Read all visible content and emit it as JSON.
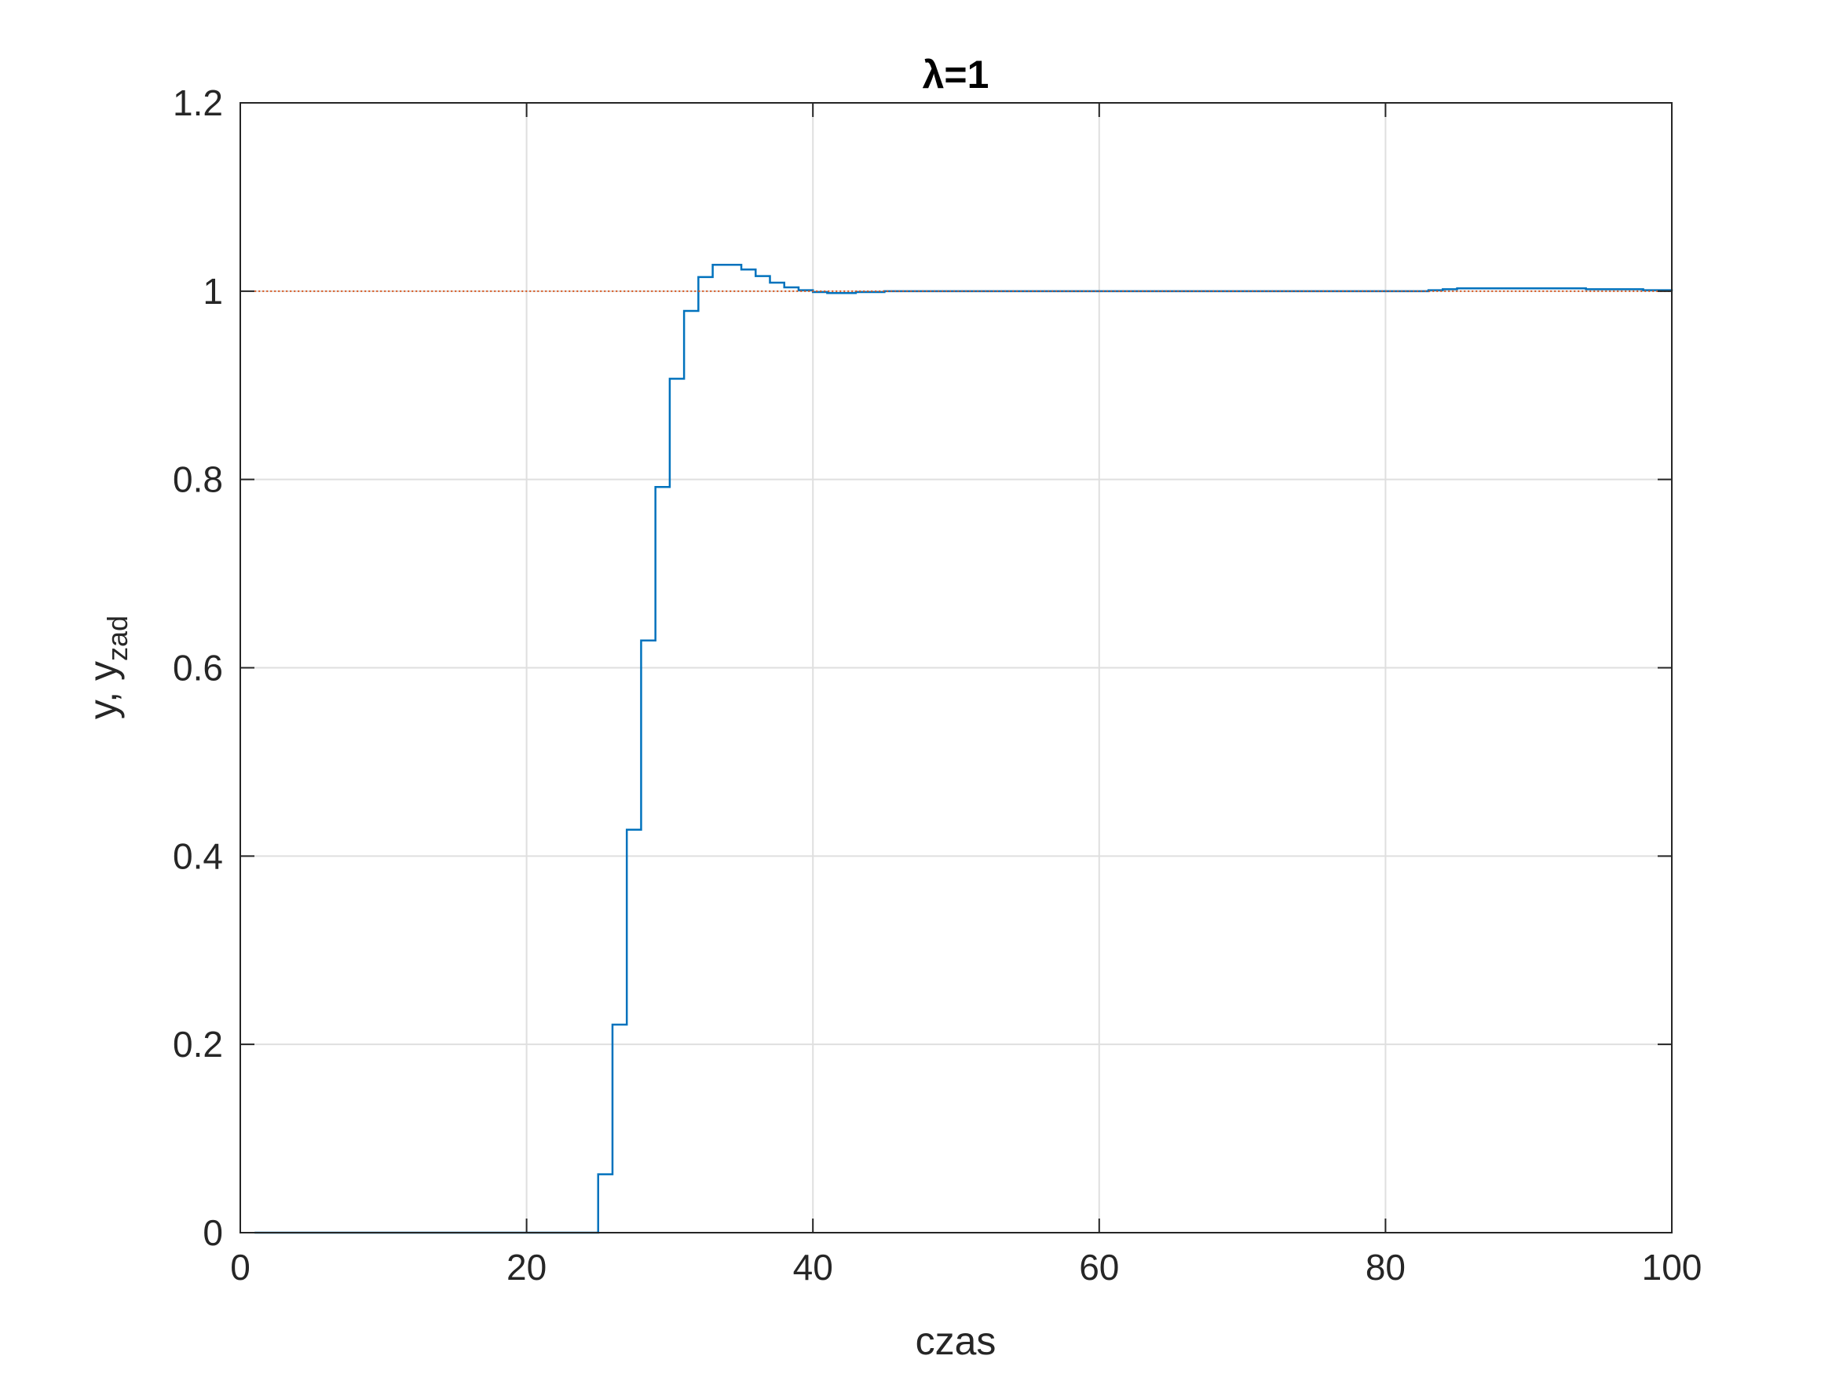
{
  "chart_data": {
    "type": "line",
    "title": "λ=1",
    "xlabel": "czas",
    "ylabel": {
      "main": "y, y",
      "subscript": "zad"
    },
    "xlim": [
      0,
      100
    ],
    "ylim": [
      0,
      1.2
    ],
    "xticks": [
      0,
      20,
      40,
      60,
      80,
      100
    ],
    "xtick_labels": [
      "0",
      "20",
      "40",
      "60",
      "80",
      "100"
    ],
    "yticks": [
      0,
      0.2,
      0.4,
      0.6,
      0.8,
      1,
      1.2
    ],
    "ytick_labels": [
      "0",
      "0.2",
      "0.4",
      "0.6",
      "0.8",
      "1",
      "1.2"
    ],
    "grid": true,
    "series": [
      {
        "color": "#0072BD",
        "style": "stairs",
        "x": [
          1,
          2,
          3,
          4,
          5,
          6,
          7,
          8,
          9,
          10,
          11,
          12,
          13,
          14,
          15,
          16,
          17,
          18,
          19,
          20,
          21,
          22,
          23,
          24,
          25,
          26,
          27,
          28,
          29,
          30,
          31,
          32,
          33,
          34,
          35,
          36,
          37,
          38,
          39,
          40,
          41,
          42,
          43,
          44,
          45,
          46,
          47,
          48,
          49,
          50,
          51,
          52,
          53,
          54,
          55,
          56,
          57,
          58,
          59,
          60,
          61,
          62,
          63,
          64,
          65,
          66,
          67,
          68,
          69,
          70,
          71,
          72,
          73,
          74,
          75,
          76,
          77,
          78,
          79,
          80,
          81,
          82,
          83,
          84,
          85,
          86,
          87,
          88,
          89,
          90,
          91,
          92,
          93,
          94,
          95,
          96,
          97,
          98,
          99,
          100
        ],
        "y": [
          0,
          0,
          0,
          0,
          0,
          0,
          0,
          0,
          0,
          0,
          0,
          0,
          0,
          0,
          0,
          0,
          0,
          0,
          0,
          0,
          0,
          0,
          0,
          0,
          0.062,
          0.221,
          0.428,
          0.629,
          0.792,
          0.907,
          0.979,
          1.015,
          1.028,
          1.028,
          1.023,
          1.016,
          1.009,
          1.004,
          1.001,
          0.999,
          0.998,
          0.998,
          0.999,
          0.999,
          1,
          1,
          1,
          1,
          1,
          1,
          1,
          1,
          1,
          1,
          1,
          1,
          1,
          1,
          1,
          1,
          1,
          1,
          1,
          1,
          1,
          1,
          1,
          1,
          1,
          1,
          1,
          1,
          1,
          1,
          1,
          1,
          1,
          1,
          1,
          1,
          1,
          1,
          1.001,
          1.002,
          1.003,
          1.003,
          1.003,
          1.003,
          1.003,
          1.003,
          1.003,
          1.003,
          1.003,
          1.002,
          1.002,
          1.002,
          1.002,
          1.001,
          1.001,
          1
        ]
      },
      {
        "color": "#D95319",
        "style": "dotted",
        "x": [
          1,
          100
        ],
        "y": [
          1,
          1
        ]
      }
    ]
  }
}
